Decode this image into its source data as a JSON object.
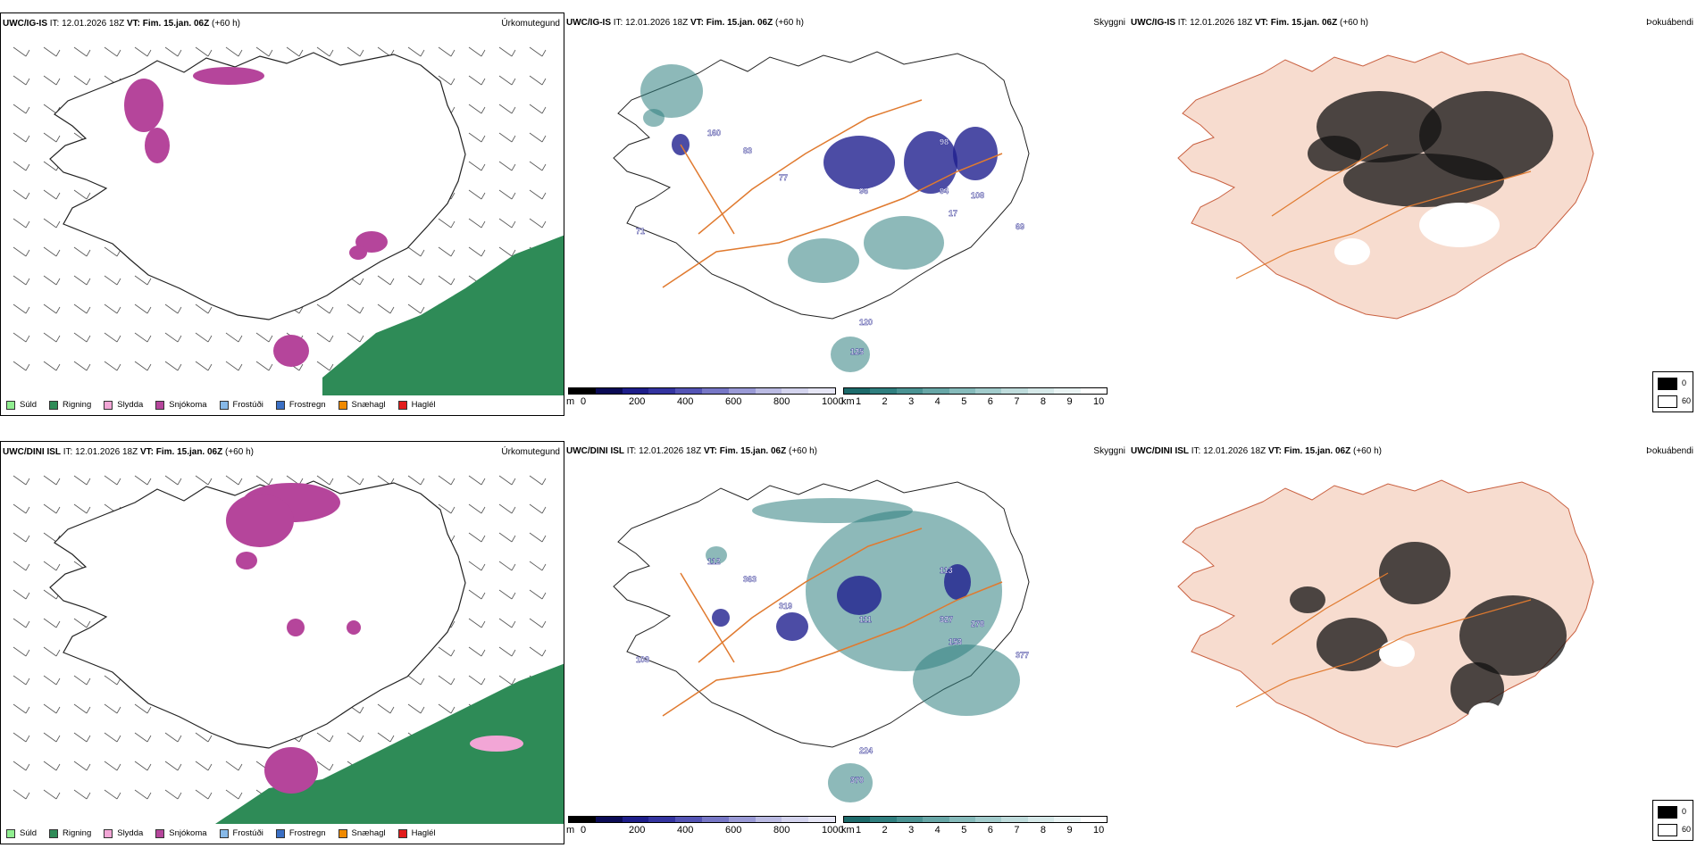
{
  "colors": {
    "sudl": "#90ee90",
    "rigning": "#2e8b57",
    "slydda": "#f2a6d6",
    "snjokoma": "#b5459b",
    "frostudi": "#87b9e8",
    "frostregn": "#3a6fc4",
    "snaehagl": "#f08a00",
    "haglel": "#e21b1b",
    "cloud_low": "#1f1f8f",
    "vis_low": "#2f7f7f",
    "road": "#e07a2f",
    "land_fog": "#f7dccf"
  },
  "precip_legend": [
    {
      "label": "Súld",
      "color": "#90ee90"
    },
    {
      "label": "Rigning",
      "color": "#2e8b57"
    },
    {
      "label": "Slydda",
      "color": "#f2a6d6"
    },
    {
      "label": "Snjókoma",
      "color": "#b5459b"
    },
    {
      "label": "Frostúði",
      "color": "#87b9e8"
    },
    {
      "label": "Frostregn",
      "color": "#3a6fc4"
    },
    {
      "label": "Snæhagl",
      "color": "#f08a00"
    },
    {
      "label": "Haglél",
      "color": "#e21b1b"
    }
  ],
  "cloud_scale": {
    "unit": "m",
    "ticks": [
      "0",
      "200",
      "400",
      "600",
      "800",
      "1000"
    ]
  },
  "vis_scale": {
    "unit": "km",
    "ticks": [
      "1",
      "2",
      "3",
      "4",
      "5",
      "6",
      "7",
      "8",
      "9",
      "10"
    ]
  },
  "fog_scale": {
    "ticks": [
      "0",
      "60"
    ]
  },
  "rows": [
    {
      "model": "UWC/IG-IS",
      "it_label": "IT:",
      "it_time": "12.01.2026 18Z",
      "vt_label": "VT:",
      "vt_time": "Fim. 15.jan. 06Z",
      "lead": "(+60 h)",
      "panels": {
        "precip": "Úrkomutegund",
        "vis": "Skyggni",
        "fog": "Þokuábendi"
      },
      "cloud_labels": [
        "71",
        "98",
        "96",
        "108",
        "94",
        "69",
        "120",
        "125",
        "160",
        "17",
        "83",
        "77"
      ]
    },
    {
      "model": "UWC/DINI ISL",
      "it_label": "IT:",
      "it_time": "12.01.2026 18Z",
      "vt_label": "VT:",
      "vt_time": "Fim. 15.jan. 06Z",
      "lead": "(+60 h)",
      "panels": {
        "precip": "Úrkomutegund",
        "vis": "Skyggni",
        "fog": "Þokuábendi"
      },
      "cloud_labels": [
        "103",
        "113",
        "111",
        "278",
        "327",
        "377",
        "224",
        "370",
        "112",
        "153",
        "363",
        "319"
      ]
    }
  ]
}
